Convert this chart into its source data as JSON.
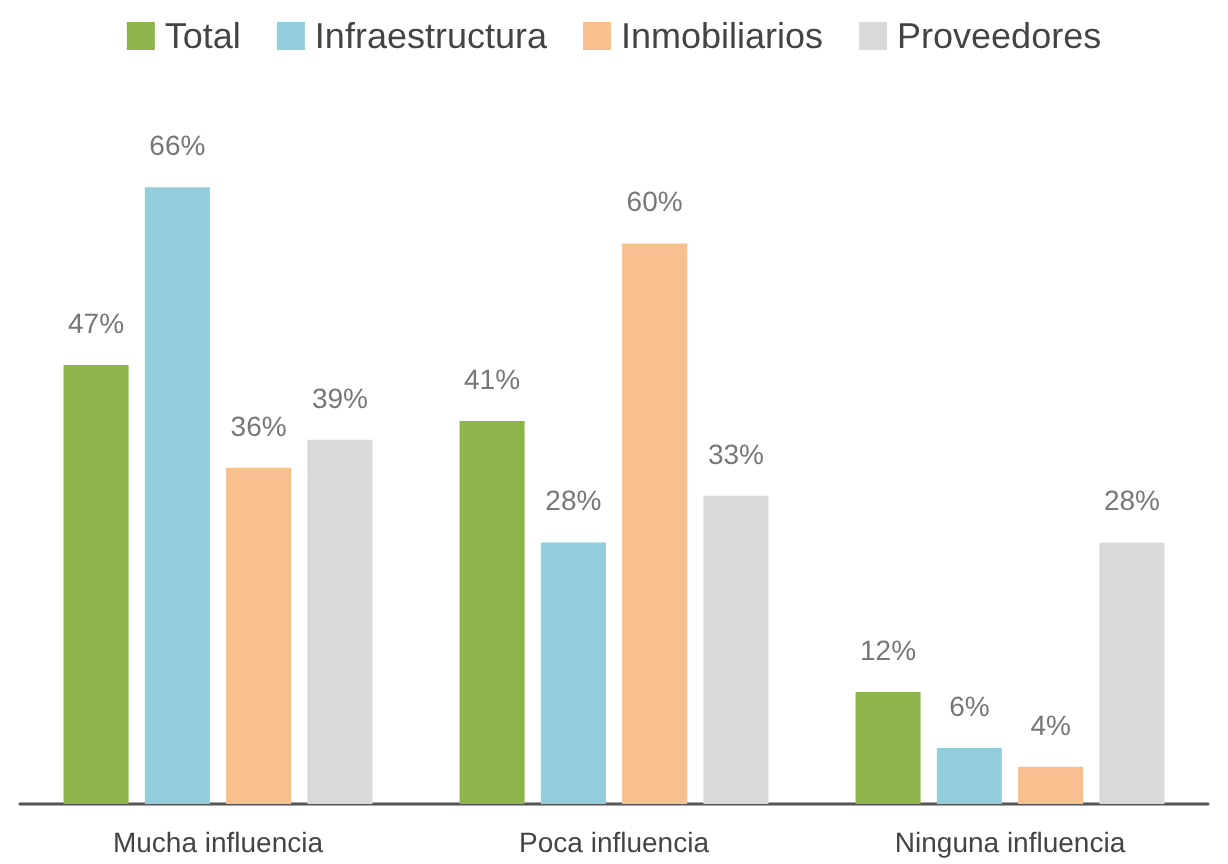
{
  "chart_data": {
    "type": "bar",
    "categories": [
      "Mucha influencia",
      "Poca influencia",
      "Ninguna influencia"
    ],
    "series": [
      {
        "name": "Total",
        "color": "#8db54b",
        "values": [
          47,
          41,
          12
        ],
        "value_labels": [
          "47%",
          "41%",
          "12%"
        ]
      },
      {
        "name": "Infraestructura",
        "color": "#92cddc",
        "values": [
          66,
          28,
          6
        ],
        "value_labels": [
          "66%",
          "28%",
          "6%"
        ]
      },
      {
        "name": "Inmobiliarios",
        "color": "#f8bf8f",
        "values": [
          36,
          60,
          4
        ],
        "value_labels": [
          "36%",
          "60%",
          "4%"
        ]
      },
      {
        "name": "Proveedores",
        "color": "#d9d9d9",
        "values": [
          39,
          33,
          28
        ],
        "value_labels": [
          "39%",
          "33%",
          "28%"
        ]
      }
    ],
    "legend": "top"
  }
}
